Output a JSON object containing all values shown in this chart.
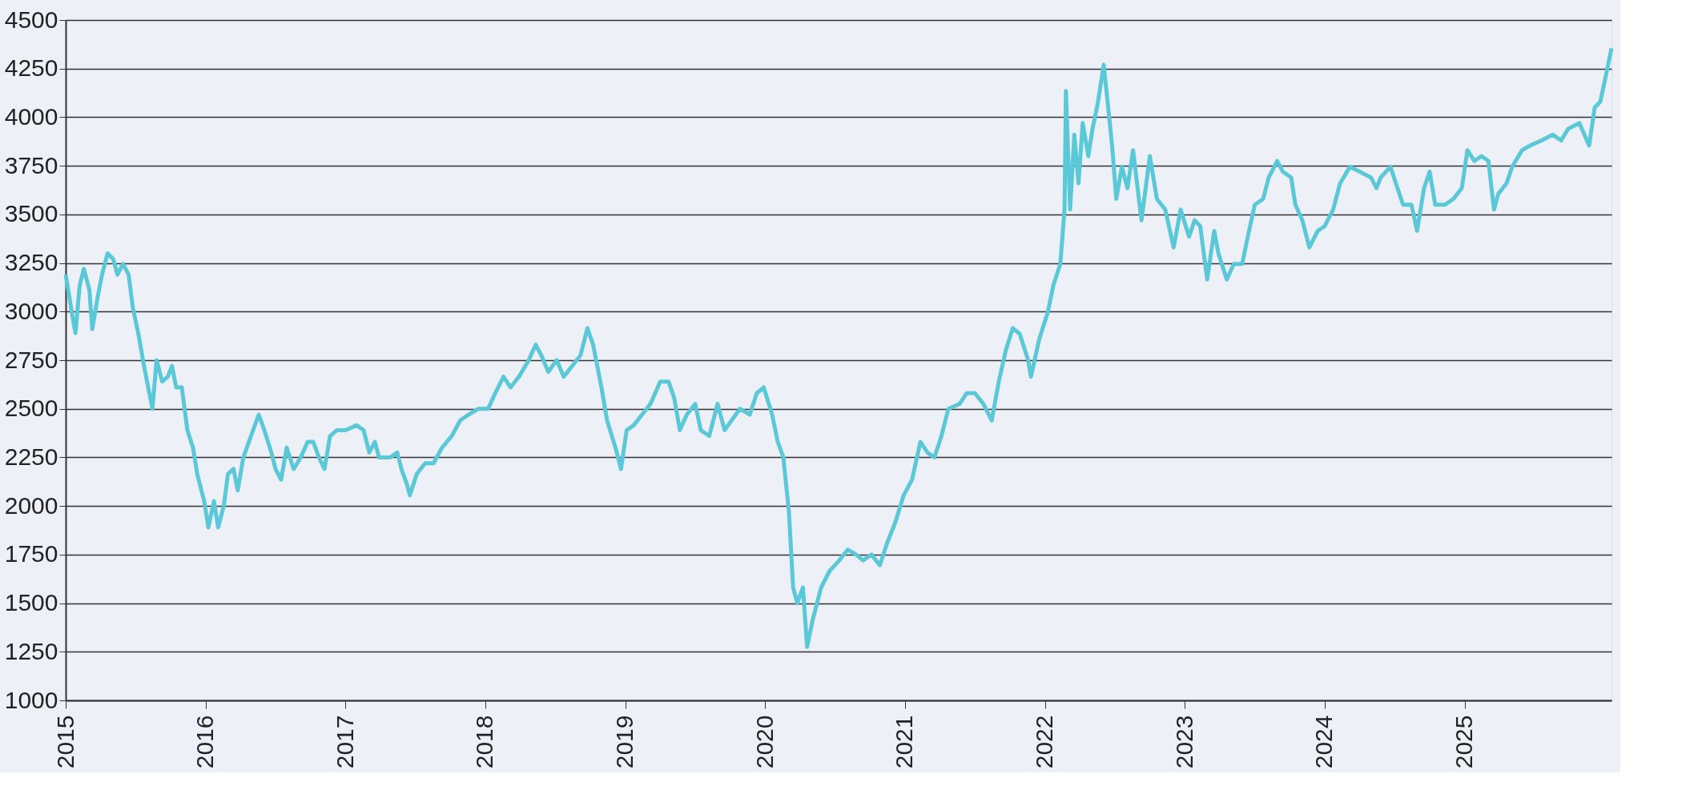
{
  "chart_data": {
    "type": "line",
    "xlim": [
      2015,
      2026.05
    ],
    "xticks": [
      2015,
      2016,
      2017,
      2018,
      2019,
      2020,
      2021,
      2022,
      2023,
      2024,
      2025
    ],
    "ylim": [
      1000,
      4500
    ],
    "yticks": [
      1000,
      1250,
      1500,
      1750,
      2000,
      2250,
      2500,
      2750,
      3000,
      3250,
      3500,
      3750,
      4000,
      4250,
      4500
    ],
    "grid": "y",
    "line_style": "solid",
    "series": [
      {
        "color": "#5bc8d8",
        "x": [
          2015.0,
          2015.05,
          2015.07,
          2015.1,
          2015.13,
          2015.17,
          2015.19,
          2015.23,
          2015.26,
          2015.3,
          2015.34,
          2015.37,
          2015.41,
          2015.45,
          2015.48,
          2015.52,
          2015.56,
          2015.62,
          2015.65,
          2015.69,
          2015.73,
          2015.76,
          2015.79,
          2015.83,
          2015.87,
          2015.91,
          2015.94,
          2015.99,
          2016.02,
          2016.06,
          2016.09,
          2016.13,
          2016.16,
          2016.2,
          2016.23,
          2016.27,
          2016.31,
          2016.34,
          2016.38,
          2016.42,
          2016.47,
          2016.5,
          2016.54,
          2016.58,
          2016.63,
          2016.68,
          2016.73,
          2016.77,
          2016.81,
          2016.85,
          2016.89,
          2016.94,
          2017.0,
          2017.08,
          2017.13,
          2017.17,
          2017.21,
          2017.24,
          2017.32,
          2017.37,
          2017.4,
          2017.44,
          2017.46,
          2017.51,
          2017.57,
          2017.63,
          2017.69,
          2017.76,
          2017.82,
          2017.88,
          2017.95,
          2018.02,
          2018.07,
          2018.13,
          2018.18,
          2018.24,
          2018.31,
          2018.36,
          2018.4,
          2018.45,
          2018.51,
          2018.56,
          2018.62,
          2018.68,
          2018.73,
          2018.77,
          2018.83,
          2018.87,
          2018.93,
          2018.97,
          2019.01,
          2019.06,
          2019.12,
          2019.18,
          2019.25,
          2019.31,
          2019.35,
          2019.39,
          2019.44,
          2019.5,
          2019.54,
          2019.6,
          2019.66,
          2019.71,
          2019.76,
          2019.82,
          2019.89,
          2019.94,
          2019.99,
          2020.05,
          2020.09,
          2020.13,
          2020.17,
          2020.2,
          2020.23,
          2020.27,
          2020.3,
          2020.34,
          2020.4,
          2020.46,
          2020.53,
          2020.59,
          2020.65,
          2020.7,
          2020.76,
          2020.82,
          2020.87,
          2020.93,
          2020.99,
          2021.05,
          2021.11,
          2021.16,
          2021.21,
          2021.26,
          2021.31,
          2021.39,
          2021.44,
          2021.5,
          2021.56,
          2021.62,
          2021.67,
          2021.72,
          2021.77,
          2021.82,
          2021.88,
          2021.9,
          2021.96,
          2022.02,
          2022.06,
          2022.11,
          2022.14,
          2022.15,
          2022.18,
          2022.21,
          2022.24,
          2022.27,
          2022.31,
          2022.34,
          2022.38,
          2022.42,
          2022.44,
          2022.48,
          2022.51,
          2022.55,
          2022.59,
          2022.63,
          2022.69,
          2022.75,
          2022.8,
          2022.86,
          2022.92,
          2022.97,
          2023.03,
          2023.07,
          2023.11,
          2023.16,
          2023.21,
          2023.24,
          2023.3,
          2023.35,
          2023.41,
          2023.45,
          2023.5,
          2023.56,
          2023.6,
          2023.66,
          2023.7,
          2023.76,
          2023.79,
          2023.84,
          2023.89,
          2023.95,
          2024.0,
          2024.06,
          2024.11,
          2024.18,
          2024.25,
          2024.33,
          2024.37,
          2024.4,
          2024.47,
          2024.52,
          2024.56,
          2024.62,
          2024.66,
          2024.71,
          2024.75,
          2024.79,
          2024.86,
          2024.92,
          2024.98,
          2025.02,
          2025.07,
          2025.12,
          2025.17,
          2025.21,
          2025.24,
          2025.3,
          2025.34,
          2025.41,
          2025.47,
          2025.55,
          2025.63,
          2025.69,
          2025.74,
          2025.82,
          2025.89,
          2025.93,
          2025.97,
          2026.01,
          2026.05
        ],
        "values": [
          3190,
          2970,
          2890,
          3135,
          3220,
          3110,
          2910,
          3080,
          3190,
          3300,
          3270,
          3190,
          3245,
          3190,
          3020,
          2885,
          2720,
          2500,
          2750,
          2640,
          2665,
          2720,
          2610,
          2610,
          2390,
          2300,
          2165,
          2025,
          1890,
          2025,
          1890,
          2000,
          2165,
          2190,
          2080,
          2250,
          2330,
          2390,
          2470,
          2390,
          2275,
          2190,
          2135,
          2300,
          2190,
          2250,
          2330,
          2330,
          2250,
          2190,
          2360,
          2390,
          2390,
          2415,
          2390,
          2275,
          2330,
          2250,
          2250,
          2275,
          2190,
          2110,
          2055,
          2165,
          2220,
          2220,
          2300,
          2360,
          2440,
          2470,
          2500,
          2500,
          2580,
          2665,
          2610,
          2665,
          2750,
          2830,
          2775,
          2690,
          2750,
          2665,
          2720,
          2775,
          2915,
          2830,
          2610,
          2440,
          2300,
          2190,
          2390,
          2415,
          2470,
          2525,
          2640,
          2640,
          2555,
          2390,
          2470,
          2525,
          2390,
          2360,
          2525,
          2390,
          2440,
          2500,
          2470,
          2580,
          2610,
          2470,
          2330,
          2250,
          1970,
          1580,
          1500,
          1580,
          1275,
          1415,
          1580,
          1665,
          1720,
          1775,
          1750,
          1720,
          1750,
          1695,
          1805,
          1915,
          2055,
          2135,
          2330,
          2275,
          2250,
          2360,
          2500,
          2525,
          2580,
          2580,
          2525,
          2440,
          2640,
          2800,
          2915,
          2885,
          2750,
          2665,
          2860,
          2995,
          3135,
          3245,
          3525,
          4135,
          3525,
          3910,
          3660,
          3970,
          3800,
          3940,
          4080,
          4270,
          4135,
          3855,
          3580,
          3745,
          3635,
          3830,
          3470,
          3800,
          3580,
          3525,
          3330,
          3525,
          3385,
          3470,
          3440,
          3165,
          3415,
          3300,
          3165,
          3245,
          3245,
          3385,
          3550,
          3580,
          3690,
          3775,
          3720,
          3690,
          3550,
          3470,
          3330,
          3415,
          3440,
          3525,
          3660,
          3745,
          3720,
          3690,
          3635,
          3690,
          3745,
          3635,
          3550,
          3550,
          3415,
          3635,
          3720,
          3550,
          3550,
          3580,
          3635,
          3830,
          3775,
          3800,
          3775,
          3525,
          3605,
          3660,
          3745,
          3830,
          3855,
          3880,
          3910,
          3880,
          3940,
          3970,
          3855,
          4050,
          4080,
          4215,
          4355
        ]
      }
    ]
  }
}
